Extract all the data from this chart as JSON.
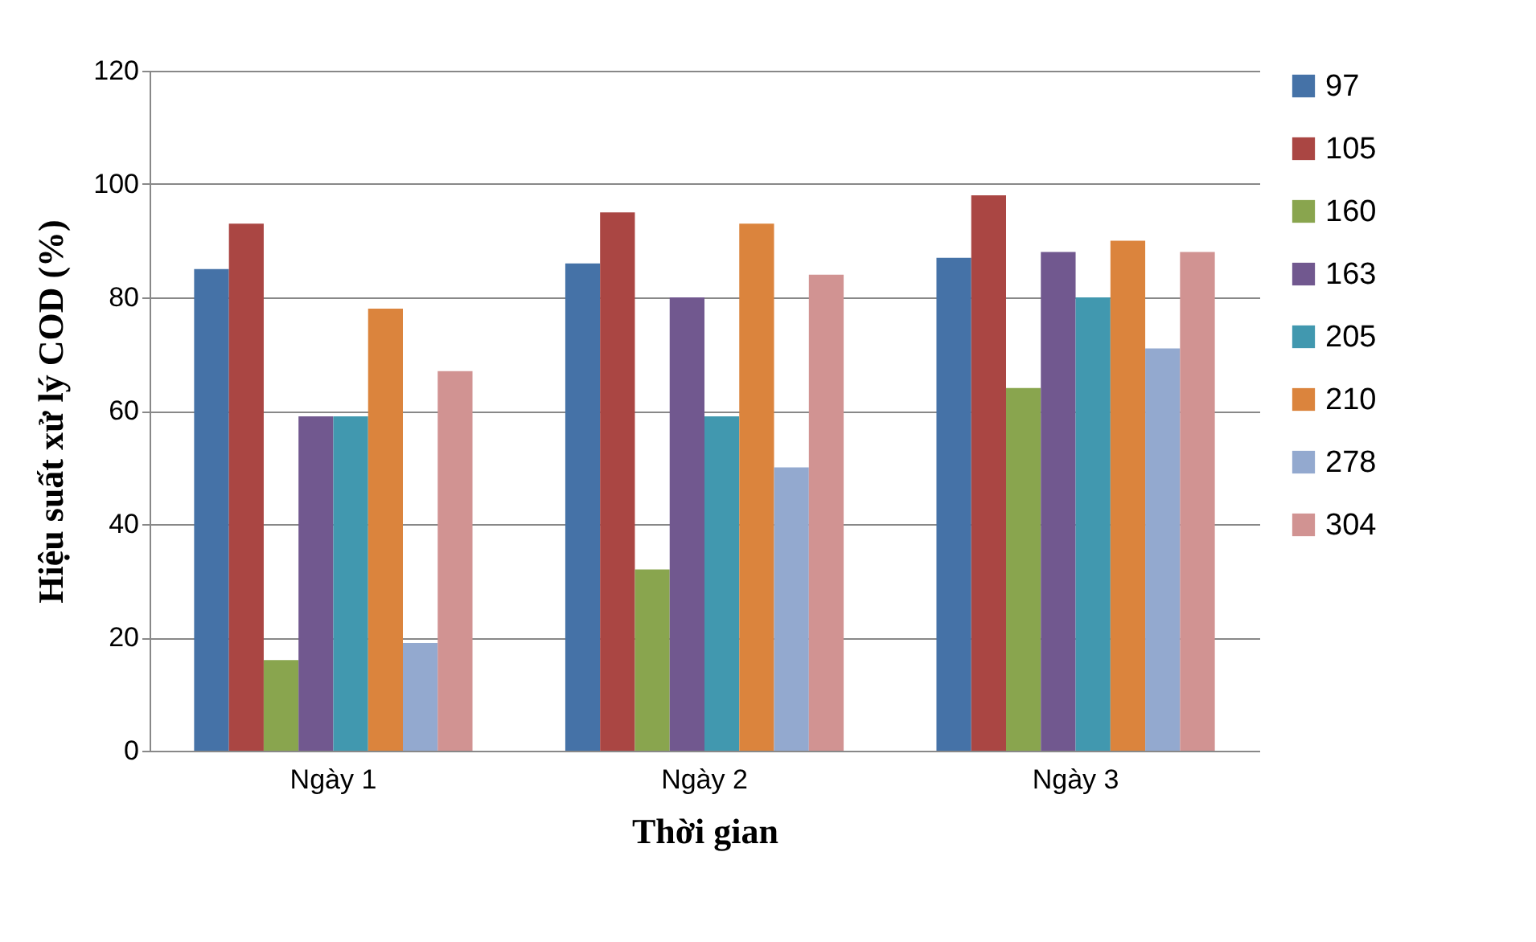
{
  "chart_data": {
    "type": "bar",
    "xlabel": "Thời gian",
    "ylabel": "Hiệu suất xử lý COD (%)",
    "categories": [
      "Ngày 1",
      "Ngày 2",
      "Ngày 3"
    ],
    "series": [
      {
        "name": "97",
        "color": "#4572a7",
        "values": [
          85,
          86,
          87
        ]
      },
      {
        "name": "105",
        "color": "#aa4643",
        "values": [
          93,
          95,
          98
        ]
      },
      {
        "name": "160",
        "color": "#89a54e",
        "values": [
          16,
          32,
          64
        ]
      },
      {
        "name": "163",
        "color": "#71588f",
        "values": [
          59,
          80,
          88
        ]
      },
      {
        "name": "205",
        "color": "#4198af",
        "values": [
          59,
          59,
          80
        ]
      },
      {
        "name": "210",
        "color": "#db843d",
        "values": [
          78,
          93,
          90
        ]
      },
      {
        "name": "278",
        "color": "#93a9cf",
        "values": [
          19,
          50,
          71
        ]
      },
      {
        "name": "304",
        "color": "#d19392",
        "values": [
          67,
          84,
          88
        ]
      }
    ],
    "ylim": [
      0,
      120
    ],
    "yticks": [
      0,
      20,
      40,
      60,
      80,
      100,
      120
    ],
    "grid": "y",
    "legend": "right"
  }
}
